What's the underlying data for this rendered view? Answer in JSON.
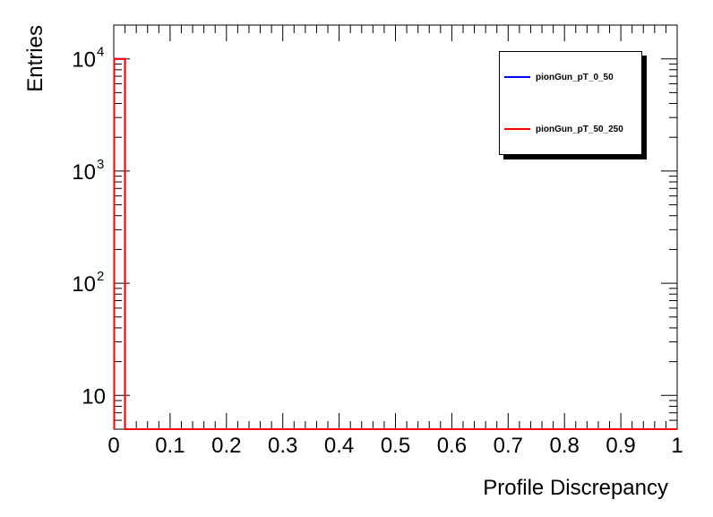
{
  "chart_data": {
    "type": "line",
    "xlabel": "Profile Discrepancy",
    "ylabel": "Entries",
    "xlim": [
      0,
      1
    ],
    "ylim": [
      5,
      20000
    ],
    "yscale": "log",
    "grid": false,
    "legend_position": "top-right",
    "x_ticks": [
      "0",
      "0.1",
      "0.2",
      "0.3",
      "0.4",
      "0.5",
      "0.6",
      "0.7",
      "0.8",
      "0.9",
      "1"
    ],
    "y_ticks": [
      {
        "value": 10,
        "base": "10",
        "exp": ""
      },
      {
        "value": 100,
        "base": "10",
        "exp": "2"
      },
      {
        "value": 1000,
        "base": "10",
        "exp": "3"
      },
      {
        "value": 10000,
        "base": "10",
        "exp": "4"
      }
    ],
    "bin_edges": [
      0,
      0.02
    ],
    "series": [
      {
        "name": "pionGun_pT_0_50",
        "color": "#0000ff",
        "values": [
          10000
        ]
      },
      {
        "name": "pionGun_pT_50_250",
        "color": "#ff0000",
        "values": [
          10000
        ]
      }
    ]
  }
}
